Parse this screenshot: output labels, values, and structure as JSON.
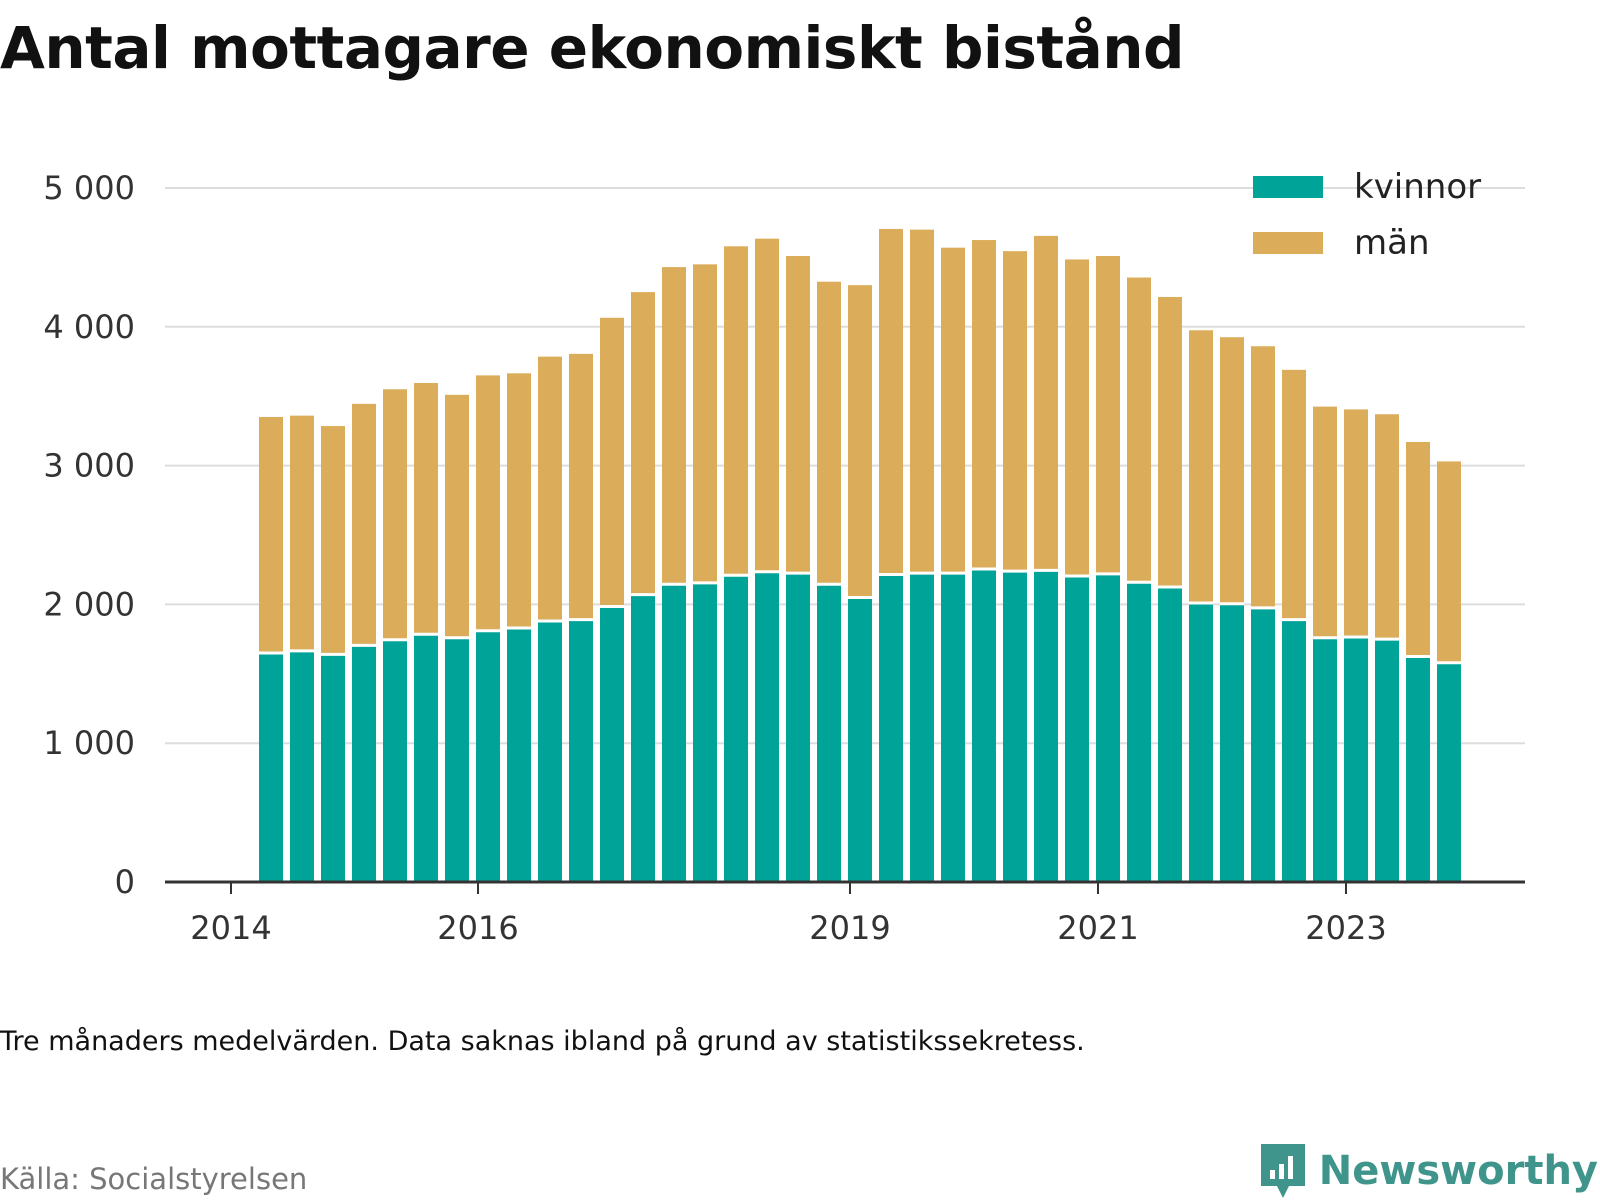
{
  "title": "Antal mottagare ekonomiskt bistånd",
  "note": "Tre månaders medelvärden. Data saknas ibland på grund av statistikssekretess.",
  "source": "Källa: Socialstyrelsen",
  "brand": {
    "name": "Newsworthy",
    "icon": "newsworthy-logo-icon",
    "color": "#3f958c"
  },
  "chart_data": {
    "type": "bar",
    "stacked": true,
    "x_tick_labels": [
      "2014",
      "2016",
      "2019",
      "2021",
      "2023"
    ],
    "y_tick_labels": [
      "0",
      "1 000",
      "2 000",
      "3 000",
      "4 000",
      "5 000"
    ],
    "ylim": [
      0,
      5000
    ],
    "grid": true,
    "legend_position": "top-right",
    "series": [
      {
        "name": "kvinnor",
        "color": "#00a398",
        "values": [
          1650,
          1665,
          1640,
          1705,
          1745,
          1785,
          1760,
          1810,
          1830,
          1880,
          1890,
          1985,
          2070,
          2145,
          2155,
          2210,
          2235,
          2225,
          2145,
          2050,
          2215,
          2225,
          2225,
          2255,
          2240,
          2245,
          2205,
          2220,
          2160,
          2125,
          2010,
          2005,
          1975,
          1890,
          1760,
          1765,
          1750,
          1625,
          1580
        ]
      },
      {
        "name": "män",
        "color": "#dbad5a",
        "values": [
          1700,
          1695,
          1645,
          1740,
          1805,
          1810,
          1750,
          1840,
          1835,
          1905,
          1915,
          2080,
          2180,
          2285,
          2295,
          2370,
          2400,
          2285,
          2180,
          2250,
          2490,
          2475,
          2345,
          2370,
          2305,
          2410,
          2280,
          2290,
          2195,
          2090,
          1965,
          1920,
          1885,
          1800,
          1665,
          1640,
          1620,
          1545,
          1450
        ]
      }
    ]
  }
}
